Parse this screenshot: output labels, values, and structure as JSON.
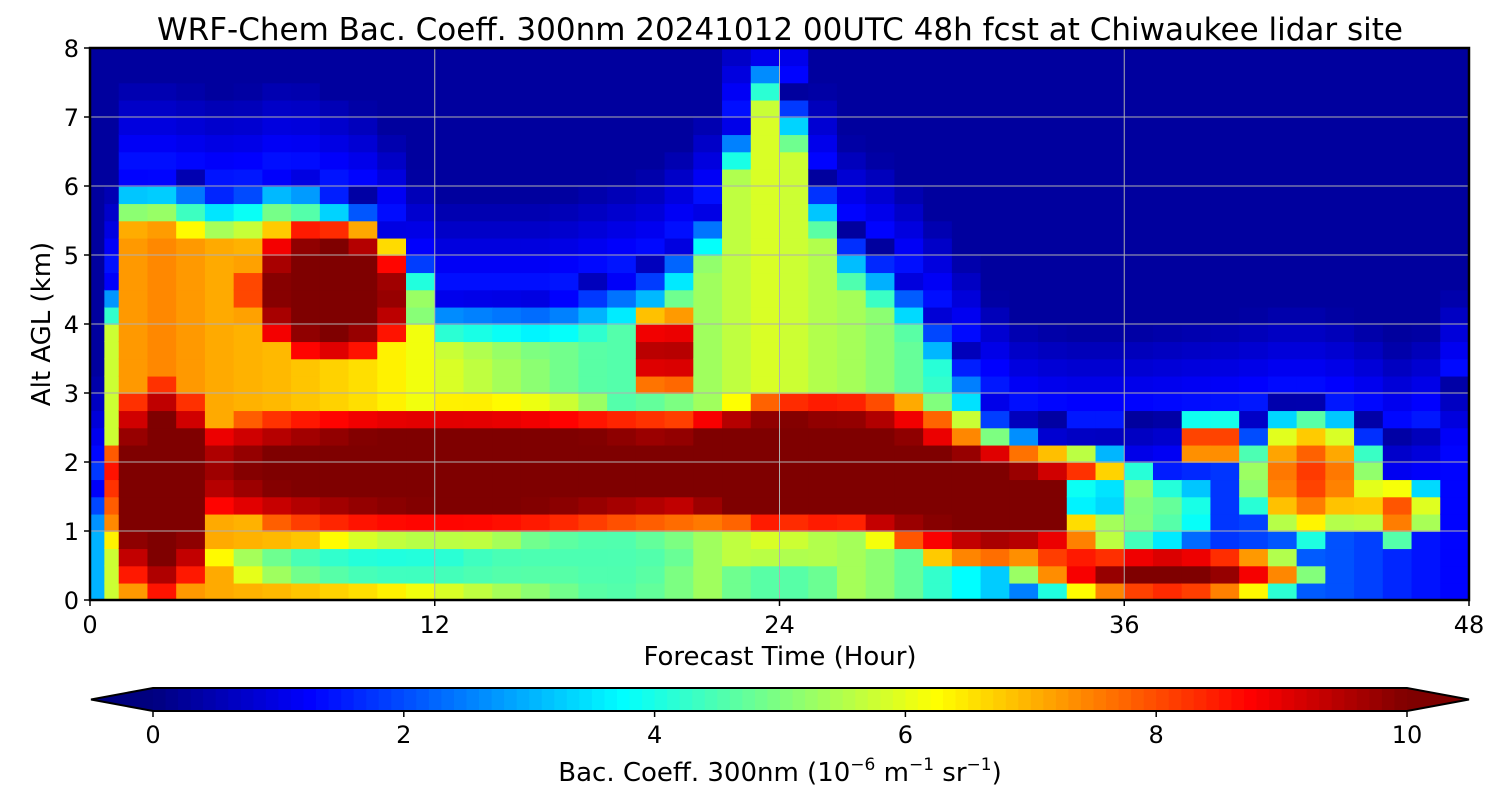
{
  "chart_data": {
    "type": "heatmap",
    "title": "WRF-Chem Bac. Coeff. 300nm  20241012 00UTC 48h fcst at Chiwaukee lidar site",
    "xlabel": "Forecast Time (Hour)",
    "ylabel": "Alt AGL (km)",
    "xlim": [
      0,
      48
    ],
    "ylim": [
      0,
      8
    ],
    "xticks": [
      "0",
      "12",
      "24",
      "36",
      "48"
    ],
    "yticks": [
      "0",
      "1",
      "2",
      "3",
      "4",
      "5",
      "6",
      "7",
      "8"
    ],
    "grid": true,
    "colormap": "jet",
    "colorbar": {
      "orientation": "horizontal",
      "placement": "bottom",
      "range": [
        0,
        10
      ],
      "extend": "both",
      "ticks": [
        "0",
        "2",
        "4",
        "6",
        "8",
        "10"
      ],
      "label_main": "Bac. Coeff. 300nm  (10",
      "label_exp1": "−6",
      "label_mid": " m",
      "label_exp2": "−1",
      "label_mid2": " sr",
      "label_exp3": "−1",
      "label_end": ")"
    },
    "x": [
      0,
      0.5,
      1,
      2,
      3,
      4,
      5,
      6,
      7,
      8,
      9,
      10,
      11,
      12,
      13,
      14,
      15,
      16,
      17,
      18,
      19,
      20,
      21,
      22,
      23,
      24,
      25,
      26,
      27,
      28,
      29,
      30,
      31,
      32,
      33,
      34,
      35,
      36,
      37,
      38,
      39,
      40,
      41,
      42,
      43,
      44,
      45,
      46,
      47,
      48
    ],
    "y": [
      0,
      0.25,
      0.5,
      0.75,
      1,
      1.25,
      1.5,
      1.75,
      2,
      2.25,
      2.5,
      2.75,
      3,
      3.25,
      3.5,
      3.75,
      4,
      4.25,
      4.5,
      4.75,
      5,
      5.25,
      5.5,
      5.75,
      6,
      6.25,
      6.5,
      6.75,
      7,
      7.25,
      7.5,
      7.75,
      8
    ],
    "features": {
      "background": 0.3,
      "top_y": 8,
      "base_profile_x": [
        0,
        0.5,
        1,
        2,
        5,
        6,
        10,
        12,
        16,
        18,
        20,
        22,
        24,
        25,
        26,
        28,
        30,
        32,
        33,
        36,
        40,
        42,
        44,
        46,
        48
      ],
      "base_profile_val": [
        1.5,
        4.5,
        7.0,
        7.5,
        7.0,
        7.0,
        6.5,
        6.0,
        5.0,
        4.5,
        4.8,
        5.5,
        6.0,
        5.5,
        5.5,
        5.0,
        4.0,
        3.0,
        2.0,
        1.6,
        1.8,
        2.2,
        2.0,
        1.5,
        1.2
      ],
      "base_top_x": [
        0,
        1,
        2,
        5,
        6,
        7,
        10,
        12,
        16,
        20,
        22,
        23,
        24,
        26,
        28,
        30,
        32,
        34,
        36,
        40,
        42,
        44,
        46,
        48
      ],
      "base_top_km": [
        0.5,
        6.2,
        6.3,
        6.0,
        6.2,
        6.3,
        5.8,
        4.5,
        4.5,
        5.0,
        6.0,
        8.0,
        8.0,
        5.5,
        5.0,
        4.0,
        2.8,
        2.6,
        2.6,
        2.8,
        3.0,
        2.8,
        2.3,
        3.5
      ],
      "blobs": [
        {
          "cx": 8.5,
          "cy": 4.5,
          "rx": 3.2,
          "ry": 1.1,
          "v": 11
        },
        {
          "cx": 15,
          "cy": 1.9,
          "rx": 15,
          "ry": 1.0,
          "v": 11
        },
        {
          "cx": 26,
          "cy": 2.0,
          "rx": 6,
          "ry": 1.1,
          "v": 11
        },
        {
          "cx": 32,
          "cy": 1.4,
          "rx": 5.5,
          "ry": 1.0,
          "v": 11
        },
        {
          "cx": 37.5,
          "cy": 0.4,
          "rx": 5.5,
          "ry": 0.45,
          "v": 10.5
        },
        {
          "cx": 2.5,
          "cy": 1.6,
          "rx": 2.0,
          "ry": 1.6,
          "v": 11
        },
        {
          "cx": 20,
          "cy": 3.6,
          "rx": 1.2,
          "ry": 0.7,
          "v": 10
        },
        {
          "cx": 10.5,
          "cy": 0.55,
          "rx": 6.5,
          "ry": 0.35,
          "v": 4.0
        },
        {
          "cx": 17,
          "cy": 0.6,
          "rx": 4,
          "ry": 0.35,
          "v": 4.5
        },
        {
          "cx": 24,
          "cy": 0.25,
          "rx": 2.5,
          "ry": 0.4,
          "v": 4.5
        },
        {
          "cx": 36.5,
          "cy": 1.3,
          "rx": 3,
          "ry": 0.6,
          "v": 5.0
        },
        {
          "cx": 39,
          "cy": 2.3,
          "rx": 1.5,
          "ry": 0.4,
          "v": 8.8
        },
        {
          "cx": 42.5,
          "cy": 1.8,
          "rx": 2.5,
          "ry": 1.0,
          "v": 8.2
        },
        {
          "cx": 45.5,
          "cy": 1.3,
          "rx": 1.5,
          "ry": 0.5,
          "v": 8.0
        },
        {
          "cx": 35,
          "cy": 1.5,
          "rx": 1.0,
          "ry": 0.4,
          "v": 2.8
        }
      ]
    }
  },
  "colors": {
    "jet_stops": [
      "#00007f",
      "#0000ff",
      "#007fff",
      "#00ffff",
      "#7fff7f",
      "#ffff00",
      "#ff7f00",
      "#ff0000",
      "#7f0000"
    ]
  }
}
